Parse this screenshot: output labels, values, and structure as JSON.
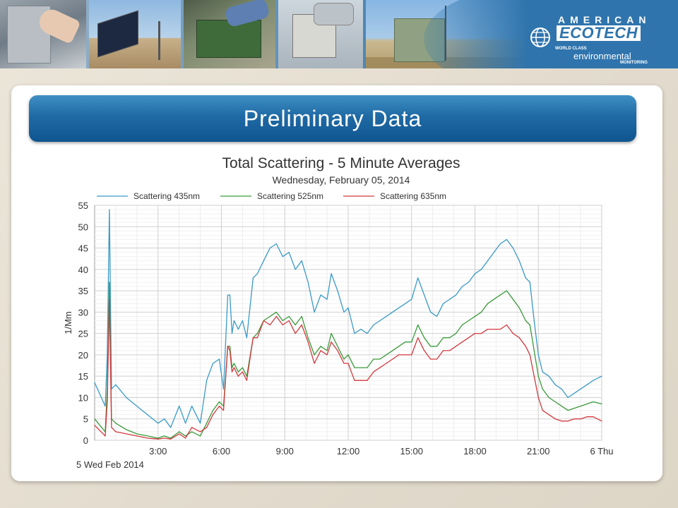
{
  "banner": {
    "logo_top": "AMERICAN",
    "logo_main": "ECOTECH",
    "tagline_1": "WORLD CLASS",
    "tagline_2": "environmental",
    "tagline_3": "MONITORING",
    "brand_color": "#2f74ad"
  },
  "slide": {
    "title": "Preliminary Data"
  },
  "chart_data": {
    "type": "line",
    "title": "Total Scattering - 5 Minute Averages",
    "subtitle": "Wednesday, February 05, 2014",
    "xlabel": "",
    "ylabel": "1/Mm",
    "xlim": [
      0,
      24
    ],
    "ylim": [
      0,
      55
    ],
    "x_ticks": [
      {
        "v": 3,
        "label": "3:00"
      },
      {
        "v": 6,
        "label": "6:00"
      },
      {
        "v": 9,
        "label": "9:00"
      },
      {
        "v": 12,
        "label": "12:00"
      },
      {
        "v": 15,
        "label": "15:00"
      },
      {
        "v": 18,
        "label": "18:00"
      },
      {
        "v": 21,
        "label": "21:00"
      },
      {
        "v": 24,
        "label": "6 Thu"
      }
    ],
    "x_origin_label": "5 Wed  Feb 2014",
    "y_ticks": [
      0,
      5,
      10,
      15,
      20,
      25,
      30,
      35,
      40,
      45,
      50,
      55
    ],
    "grid": true,
    "legend_position": "top",
    "series": [
      {
        "name": "Scattering 435nm",
        "color": "#3a9ac7",
        "x": [
          0,
          0.5,
          0.6,
          0.7,
          0.8,
          1.0,
          1.5,
          2.0,
          2.5,
          3.0,
          3.3,
          3.6,
          4.0,
          4.3,
          4.6,
          5.0,
          5.3,
          5.6,
          5.9,
          6.1,
          6.3,
          6.4,
          6.5,
          6.6,
          6.8,
          7.0,
          7.2,
          7.5,
          7.7,
          8.0,
          8.3,
          8.6,
          8.9,
          9.2,
          9.5,
          9.8,
          10.1,
          10.4,
          10.7,
          11.0,
          11.2,
          11.5,
          11.8,
          12.0,
          12.3,
          12.6,
          12.9,
          13.2,
          13.5,
          13.8,
          14.1,
          14.4,
          14.7,
          15.0,
          15.3,
          15.6,
          15.9,
          16.2,
          16.5,
          16.8,
          17.1,
          17.4,
          17.7,
          18.0,
          18.3,
          18.6,
          18.9,
          19.2,
          19.5,
          19.8,
          20.1,
          20.4,
          20.6,
          20.8,
          21.0,
          21.2,
          21.5,
          21.8,
          22.1,
          22.4,
          22.7,
          23.0,
          23.3,
          23.6,
          24.0
        ],
        "y": [
          13.5,
          8,
          20,
          54,
          12,
          13,
          10,
          8,
          6,
          4,
          5,
          3,
          8,
          4,
          8,
          4,
          14,
          18,
          19,
          12,
          34,
          34,
          25,
          28,
          26,
          28,
          24,
          38,
          39,
          42,
          45,
          46,
          43,
          44,
          40,
          42,
          37,
          30,
          34,
          33,
          39,
          35,
          30,
          31,
          25,
          26,
          25,
          27,
          28,
          29,
          30,
          31,
          32,
          33,
          38,
          34,
          30,
          29,
          32,
          33,
          34,
          36,
          37,
          39,
          40,
          42,
          44,
          46,
          47,
          45,
          42,
          38,
          37,
          28,
          20,
          16,
          15,
          13,
          12,
          10,
          11,
          12,
          13,
          14,
          15
        ]
      },
      {
        "name": "Scattering 525nm",
        "color": "#3a9a3a",
        "x": [
          0,
          0.5,
          0.6,
          0.7,
          0.8,
          1.0,
          1.5,
          2.0,
          2.5,
          3.0,
          3.3,
          3.6,
          4.0,
          4.3,
          4.6,
          5.0,
          5.3,
          5.6,
          5.9,
          6.1,
          6.3,
          6.4,
          6.5,
          6.6,
          6.8,
          7.0,
          7.2,
          7.5,
          7.7,
          8.0,
          8.3,
          8.6,
          8.9,
          9.2,
          9.5,
          9.8,
          10.1,
          10.4,
          10.7,
          11.0,
          11.2,
          11.5,
          11.8,
          12.0,
          12.3,
          12.6,
          12.9,
          13.2,
          13.5,
          13.8,
          14.1,
          14.4,
          14.7,
          15.0,
          15.3,
          15.6,
          15.9,
          16.2,
          16.5,
          16.8,
          17.1,
          17.4,
          17.7,
          18.0,
          18.3,
          18.6,
          18.9,
          19.2,
          19.5,
          19.8,
          20.1,
          20.4,
          20.6,
          20.8,
          21.0,
          21.2,
          21.5,
          21.8,
          22.1,
          22.4,
          22.7,
          23.0,
          23.3,
          23.6,
          24.0
        ],
        "y": [
          5,
          2,
          12,
          37,
          5,
          4,
          2.5,
          1.5,
          1,
          0.5,
          1,
          0.5,
          2,
          1,
          2,
          1,
          4,
          7,
          9,
          8,
          22,
          22,
          17,
          18,
          16,
          17,
          15,
          24,
          25,
          28,
          29,
          30,
          28,
          29,
          27,
          29,
          24,
          20,
          22,
          21,
          25,
          22,
          19,
          20,
          17,
          17,
          17,
          19,
          19,
          20,
          21,
          22,
          23,
          23,
          27,
          24,
          22,
          22,
          24,
          24,
          25,
          27,
          28,
          29,
          30,
          32,
          33,
          34,
          35,
          33,
          31,
          28,
          27,
          21,
          15,
          12,
          10,
          9,
          8,
          7,
          7.5,
          8,
          8.5,
          9,
          8.5
        ]
      },
      {
        "name": "Scattering 635nm",
        "color": "#d2393d",
        "x": [
          0,
          0.5,
          0.6,
          0.7,
          0.8,
          1.0,
          1.5,
          2.0,
          2.5,
          3.0,
          3.3,
          3.6,
          4.0,
          4.3,
          4.6,
          5.0,
          5.3,
          5.6,
          5.9,
          6.1,
          6.3,
          6.4,
          6.5,
          6.6,
          6.8,
          7.0,
          7.2,
          7.5,
          7.7,
          8.0,
          8.3,
          8.6,
          8.9,
          9.2,
          9.5,
          9.8,
          10.1,
          10.4,
          10.7,
          11.0,
          11.2,
          11.5,
          11.8,
          12.0,
          12.3,
          12.6,
          12.9,
          13.2,
          13.5,
          13.8,
          14.1,
          14.4,
          14.7,
          15.0,
          15.3,
          15.6,
          15.9,
          16.2,
          16.5,
          16.8,
          17.1,
          17.4,
          17.7,
          18.0,
          18.3,
          18.6,
          18.9,
          19.2,
          19.5,
          19.8,
          20.1,
          20.4,
          20.6,
          20.8,
          21.0,
          21.2,
          21.5,
          21.8,
          22.1,
          22.4,
          22.7,
          23.0,
          23.3,
          23.6,
          24.0
        ],
        "y": [
          3.5,
          1,
          9,
          33,
          3,
          2,
          1.5,
          1,
          0.5,
          0.3,
          0.5,
          0.3,
          1.5,
          0.5,
          3,
          2,
          3,
          6,
          8,
          7,
          22,
          21,
          16,
          17,
          15,
          16,
          14,
          24,
          24,
          28,
          27,
          29,
          27,
          28,
          25,
          27,
          23,
          18,
          21,
          20,
          23,
          21,
          18,
          18,
          14,
          14,
          14,
          16,
          17,
          18,
          19,
          20,
          20,
          20,
          24,
          21,
          19,
          19,
          21,
          21,
          22,
          23,
          24,
          25,
          25,
          26,
          26,
          26,
          27,
          25,
          24,
          22,
          20,
          15,
          10,
          7,
          6,
          5,
          4.5,
          4.5,
          5,
          5,
          5.5,
          5.5,
          4.5
        ]
      }
    ]
  }
}
